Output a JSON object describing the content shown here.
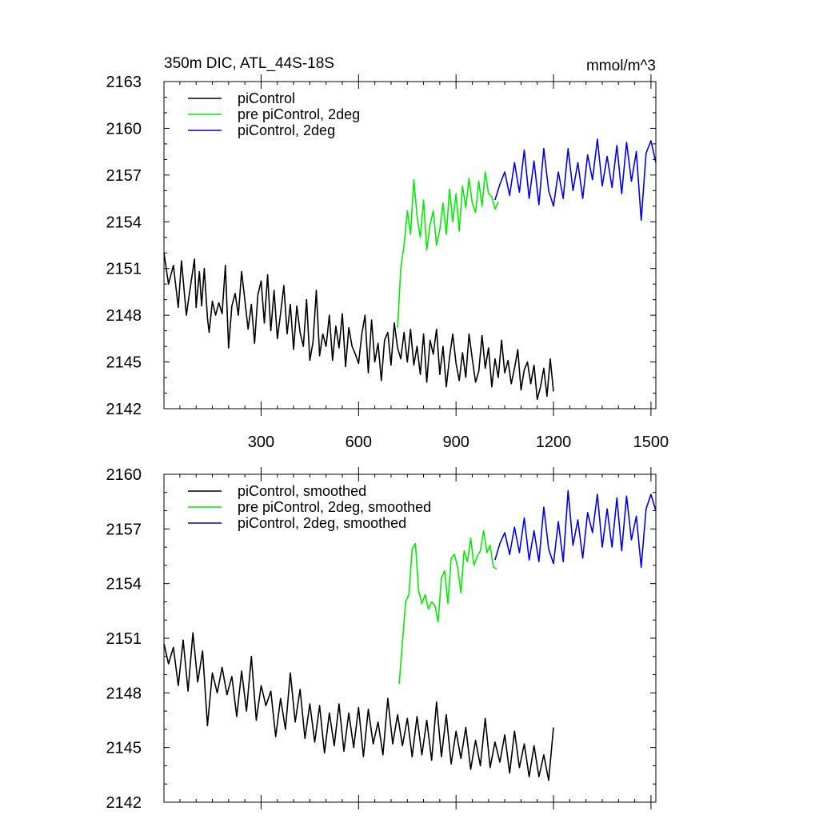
{
  "chart_data": [
    {
      "type": "line",
      "title_left": "350m DIC, ATL_44S-18S",
      "title_right": "mmol/m^3",
      "xlim": [
        1,
        1515
      ],
      "ylim": [
        2142,
        2163
      ],
      "yticks": [
        2142,
        2145,
        2148,
        2151,
        2154,
        2157,
        2160,
        2163
      ],
      "xticks": [
        300,
        600,
        900,
        1200,
        1500
      ],
      "show_x_tick_labels": true,
      "grid": false,
      "legend_position": "top-left",
      "series": [
        {
          "name": "piControl",
          "color": "#000000",
          "x": [
            1,
            15,
            30,
            45,
            55,
            70,
            80,
            95,
            100,
            110,
            117,
            125,
            135,
            140,
            150,
            160,
            170,
            180,
            190,
            200,
            210,
            220,
            230,
            240,
            250,
            260,
            270,
            280,
            290,
            300,
            310,
            320,
            330,
            340,
            350,
            360,
            370,
            380,
            390,
            400,
            410,
            420,
            430,
            440,
            450,
            460,
            470,
            480,
            490,
            500,
            510,
            520,
            530,
            540,
            550,
            560,
            570,
            580,
            590,
            600,
            610,
            620,
            630,
            640,
            650,
            660,
            670,
            680,
            690,
            700,
            710,
            720,
            730,
            740,
            750,
            760,
            770,
            780,
            790,
            800,
            810,
            820,
            830,
            840,
            850,
            860,
            870,
            880,
            890,
            900,
            910,
            920,
            930,
            940,
            950,
            960,
            970,
            980,
            990,
            1000,
            1010,
            1020,
            1030,
            1040,
            1050,
            1060,
            1070,
            1080,
            1090,
            1100,
            1110,
            1120,
            1130,
            1140,
            1150,
            1160,
            1170,
            1180,
            1190,
            1200
          ],
          "y": [
            2152.0,
            2150.0,
            2151.2,
            2148.5,
            2151.5,
            2148.0,
            2149.5,
            2151.6,
            2148.5,
            2150.8,
            2148.6,
            2151.0,
            2147.8,
            2146.9,
            2148.9,
            2148.0,
            2148.8,
            2148.1,
            2151.2,
            2145.9,
            2148.6,
            2149.4,
            2148.0,
            2150.8,
            2149.0,
            2147.1,
            2148.7,
            2146.2,
            2149.3,
            2150.2,
            2147.5,
            2150.6,
            2147.0,
            2149.6,
            2146.5,
            2148.1,
            2149.9,
            2146.8,
            2148.7,
            2145.8,
            2148.6,
            2146.9,
            2146.0,
            2149.0,
            2145.1,
            2146.3,
            2149.6,
            2145.4,
            2146.8,
            2146.0,
            2148.0,
            2145.1,
            2147.3,
            2145.9,
            2148.1,
            2144.7,
            2147.2,
            2146.0,
            2145.5,
            2144.9,
            2146.8,
            2148.0,
            2144.3,
            2147.7,
            2145.0,
            2146.2,
            2143.8,
            2146.4,
            2146.9,
            2144.8,
            2147.5,
            2145.9,
            2145.2,
            2146.9,
            2145.0,
            2147.1,
            2144.8,
            2146.0,
            2144.2,
            2146.8,
            2143.7,
            2146.4,
            2145.5,
            2147.1,
            2144.2,
            2146.0,
            2143.4,
            2145.3,
            2146.8,
            2144.9,
            2143.8,
            2145.6,
            2144.0,
            2146.8,
            2145.2,
            2143.7,
            2144.4,
            2146.7,
            2144.6,
            2145.9,
            2143.4,
            2145.2,
            2144.0,
            2146.4,
            2144.3,
            2145.1,
            2143.6,
            2144.6,
            2145.8,
            2143.2,
            2144.5,
            2145.0,
            2143.6,
            2144.8,
            2142.6,
            2143.4,
            2144.6,
            2142.8,
            2145.2,
            2143.1
          ]
        },
        {
          "name": "pre piControl, 2deg",
          "color": "#00ee00",
          "x": [
            720,
            730,
            740,
            750,
            760,
            770,
            780,
            790,
            800,
            810,
            820,
            830,
            840,
            850,
            860,
            870,
            880,
            890,
            900,
            910,
            920,
            930,
            940,
            950,
            960,
            970,
            980,
            990,
            1000,
            1010,
            1020,
            1030
          ],
          "y": [
            2147.2,
            2151.0,
            2152.5,
            2154.7,
            2153.2,
            2156.7,
            2154.4,
            2153.0,
            2155.4,
            2152.2,
            2153.8,
            2154.7,
            2152.5,
            2153.5,
            2155.2,
            2153.2,
            2156.1,
            2154.0,
            2155.8,
            2153.4,
            2156.3,
            2154.9,
            2156.8,
            2155.2,
            2154.6,
            2156.6,
            2155.0,
            2157.2,
            2155.8,
            2155.6,
            2154.8,
            2155.3
          ]
        },
        {
          "name": "piControl, 2deg",
          "color": "#0000ee",
          "x": [
            1020,
            1035,
            1050,
            1065,
            1080,
            1095,
            1110,
            1125,
            1140,
            1155,
            1170,
            1185,
            1200,
            1215,
            1230,
            1245,
            1260,
            1275,
            1290,
            1305,
            1320,
            1335,
            1350,
            1365,
            1380,
            1395,
            1410,
            1425,
            1440,
            1455,
            1470,
            1485,
            1500,
            1515
          ],
          "y": [
            2155.4,
            2156.4,
            2157.2,
            2155.7,
            2157.8,
            2155.9,
            2158.6,
            2155.5,
            2157.9,
            2155.1,
            2158.7,
            2156.0,
            2155.0,
            2157.2,
            2155.5,
            2158.7,
            2156.0,
            2157.8,
            2155.5,
            2158.3,
            2156.7,
            2159.3,
            2156.3,
            2158.2,
            2156.2,
            2158.9,
            2155.8,
            2159.1,
            2156.6,
            2158.5,
            2154.1,
            2158.4,
            2159.2,
            2157.8
          ]
        }
      ]
    },
    {
      "type": "line",
      "xlim": [
        1,
        1515
      ],
      "ylim": [
        2142,
        2160
      ],
      "yticks": [
        2142,
        2145,
        2148,
        2151,
        2154,
        2157,
        2160
      ],
      "xticks": [
        300,
        600,
        900,
        1200,
        1500
      ],
      "show_x_tick_labels": false,
      "grid": false,
      "legend_position": "top-left",
      "series": [
        {
          "name": "piControl, smoothed",
          "color": "#000000",
          "x": [
            1,
            15,
            30,
            45,
            60,
            75,
            90,
            105,
            120,
            135,
            150,
            165,
            180,
            195,
            210,
            225,
            240,
            255,
            270,
            285,
            300,
            315,
            330,
            345,
            360,
            375,
            390,
            405,
            420,
            435,
            450,
            465,
            480,
            495,
            510,
            525,
            540,
            555,
            570,
            585,
            600,
            615,
            630,
            645,
            660,
            675,
            690,
            705,
            720,
            735,
            750,
            765,
            780,
            795,
            810,
            825,
            840,
            855,
            870,
            885,
            900,
            915,
            930,
            945,
            960,
            975,
            990,
            1005,
            1020,
            1035,
            1050,
            1065,
            1080,
            1095,
            1110,
            1125,
            1140,
            1155,
            1170,
            1185,
            1200
          ],
          "y": [
            2150.7,
            2149.6,
            2150.5,
            2148.4,
            2150.9,
            2148.1,
            2151.3,
            2148.6,
            2150.3,
            2146.2,
            2149.1,
            2148.0,
            2149.4,
            2147.9,
            2148.9,
            2146.7,
            2149.2,
            2147.0,
            2150.0,
            2146.5,
            2148.4,
            2147.3,
            2148.1,
            2145.6,
            2147.7,
            2146.0,
            2149.1,
            2146.4,
            2148.2,
            2145.5,
            2147.4,
            2145.3,
            2147.3,
            2144.7,
            2146.9,
            2145.1,
            2147.4,
            2144.8,
            2146.9,
            2145.0,
            2147.2,
            2144.5,
            2147.1,
            2145.2,
            2146.4,
            2144.6,
            2147.7,
            2145.2,
            2146.8,
            2145.1,
            2146.6,
            2144.5,
            2146.7,
            2144.6,
            2146.5,
            2144.3,
            2147.5,
            2144.5,
            2146.8,
            2144.1,
            2145.9,
            2144.4,
            2146.1,
            2143.8,
            2145.4,
            2144.0,
            2146.6,
            2143.9,
            2145.3,
            2144.2,
            2145.7,
            2143.6,
            2145.9,
            2143.9,
            2145.2,
            2143.4,
            2145.1,
            2143.4,
            2144.6,
            2143.2,
            2146.1
          ]
        },
        {
          "name": "pre piControl, 2deg, smoothed",
          "color": "#00ee00",
          "x": [
            725,
            735,
            745,
            755,
            765,
            775,
            785,
            795,
            805,
            815,
            825,
            835,
            845,
            855,
            865,
            875,
            885,
            895,
            905,
            915,
            925,
            935,
            945,
            955,
            965,
            975,
            985,
            995,
            1005,
            1015,
            1025
          ],
          "y": [
            2148.5,
            2150.8,
            2153.0,
            2153.4,
            2155.9,
            2156.2,
            2153.6,
            2152.9,
            2153.4,
            2152.6,
            2153.0,
            2152.8,
            2151.9,
            2154.3,
            2154.7,
            2152.9,
            2155.4,
            2155.6,
            2154.9,
            2153.5,
            2155.8,
            2155.2,
            2156.5,
            2155.0,
            2155.5,
            2155.8,
            2156.9,
            2155.7,
            2156.1,
            2154.9,
            2154.8
          ]
        },
        {
          "name": "piControl, 2deg, smoothed",
          "color": "#0000ee",
          "x": [
            1020,
            1035,
            1050,
            1065,
            1080,
            1095,
            1110,
            1125,
            1140,
            1155,
            1170,
            1185,
            1200,
            1215,
            1230,
            1245,
            1260,
            1275,
            1290,
            1305,
            1320,
            1335,
            1350,
            1365,
            1380,
            1395,
            1410,
            1425,
            1440,
            1455,
            1470,
            1485,
            1500,
            1515
          ],
          "y": [
            2155.3,
            2156.2,
            2156.8,
            2155.6,
            2157.1,
            2155.7,
            2157.6,
            2155.3,
            2156.9,
            2155.2,
            2158.2,
            2155.9,
            2155.1,
            2157.4,
            2155.2,
            2159.1,
            2156.1,
            2157.5,
            2155.4,
            2157.9,
            2156.8,
            2158.9,
            2156.0,
            2158.1,
            2156.0,
            2158.7,
            2155.8,
            2158.8,
            2156.4,
            2157.7,
            2154.9,
            2158.1,
            2158.9,
            2158.0
          ]
        }
      ]
    }
  ]
}
